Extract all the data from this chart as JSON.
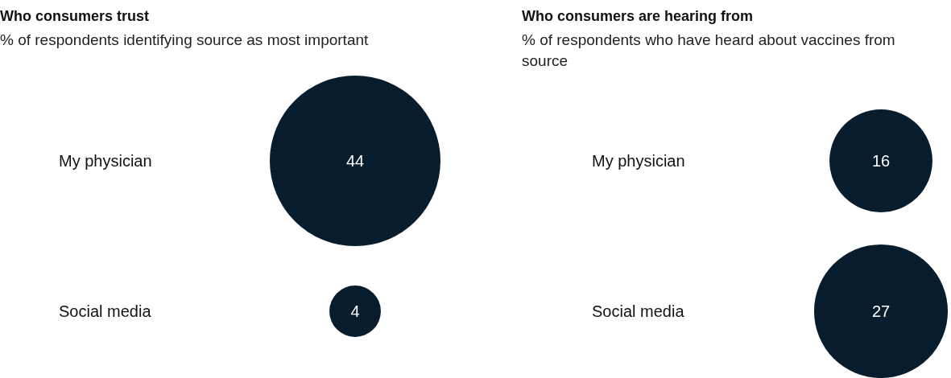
{
  "chart_data": [
    {
      "type": "other",
      "title": "Who consumers trust",
      "subtitle": "% of respondents identifying source as most important",
      "categories": [
        "My physician",
        "Social media"
      ],
      "values": [
        44,
        4
      ],
      "color": "#071d2e",
      "data_labels": true
    },
    {
      "type": "other",
      "title": "Who consumers are hearing from",
      "subtitle": "% of respondents who have heard about vaccines from source",
      "categories": [
        "My physician",
        "Social media"
      ],
      "values": [
        16,
        27
      ],
      "color": "#071d2e",
      "data_labels": true
    }
  ]
}
